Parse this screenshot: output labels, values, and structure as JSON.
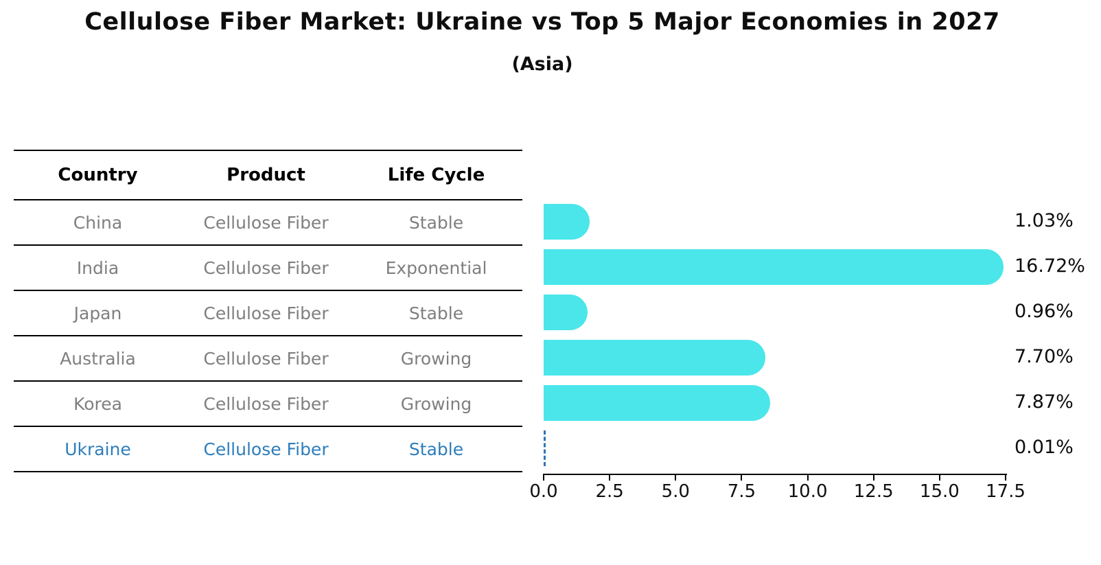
{
  "header": {
    "title": "Cellulose Fiber Market: Ukraine vs Top 5 Major Economies in 2027",
    "subtitle": "(Asia)"
  },
  "table": {
    "columns": [
      "Country",
      "Product",
      "Life Cycle"
    ],
    "rows": [
      {
        "country": "China",
        "product": "Cellulose Fiber",
        "life_cycle": "Stable",
        "highlight": false
      },
      {
        "country": "India",
        "product": "Cellulose Fiber",
        "life_cycle": "Exponential",
        "highlight": false
      },
      {
        "country": "Japan",
        "product": "Cellulose Fiber",
        "life_cycle": "Stable",
        "highlight": false
      },
      {
        "country": "Australia",
        "product": "Cellulose Fiber",
        "life_cycle": "Growing",
        "highlight": false
      },
      {
        "country": "Korea",
        "product": "Cellulose Fiber",
        "life_cycle": "Growing",
        "highlight": true
      }
    ],
    "highlight_row": {
      "country": "Ukraine",
      "product": "Cellulose Fiber",
      "life_cycle": "Stable"
    }
  },
  "chart_data": {
    "type": "bar",
    "orientation": "horizontal",
    "title": "Cellulose Fiber Market: Ukraine vs Top 5 Major Economies in 2027 (Asia)",
    "categories": [
      "China",
      "India",
      "Japan",
      "Australia",
      "Korea",
      "Ukraine"
    ],
    "values": [
      1.03,
      16.72,
      0.96,
      7.7,
      7.87,
      0.01
    ],
    "value_labels": [
      "1.03%",
      "16.72%",
      "0.96%",
      "7.70%",
      "7.87%",
      "0.01%"
    ],
    "bar_styles": [
      "solid",
      "solid",
      "solid",
      "solid",
      "solid",
      "dashed"
    ],
    "xlim": [
      0,
      17.5
    ],
    "x_ticks": [
      0.0,
      2.5,
      5.0,
      7.5,
      10.0,
      12.5,
      15.0,
      17.5
    ],
    "x_tick_labels": [
      "0.0",
      "2.5",
      "5.0",
      "7.5",
      "10.0",
      "12.5",
      "15.0",
      "17.5"
    ],
    "grid": false,
    "legend": false,
    "colors": {
      "bar": "#4ae6ea",
      "highlight_text": "#2e7ebc",
      "dashed_bar": "#2e74b5",
      "table_text": "#7f7f7f",
      "axis": "#000000"
    }
  }
}
